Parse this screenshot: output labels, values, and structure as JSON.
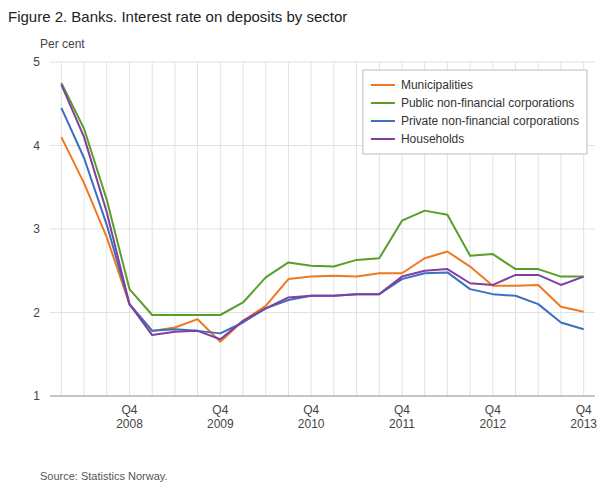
{
  "chart_data": {
    "type": "line",
    "title": "Figure 2. Banks. Interest rate on deposits by sector",
    "y_label": "Per cent",
    "annotations": [
      "Source: Statistics Norway."
    ],
    "categories": [
      null,
      null,
      null,
      "Q4\n2008",
      null,
      null,
      null,
      "Q4\n2009",
      null,
      null,
      null,
      "Q4\n2010",
      null,
      null,
      null,
      "Q4\n2011",
      null,
      null,
      null,
      "Q4\n2012",
      null,
      null,
      null,
      "Q4\n2013"
    ],
    "series": [
      {
        "name": "Municipalities",
        "color": "#f07820",
        "values": [
          4.1,
          3.55,
          2.9,
          2.1,
          1.78,
          1.82,
          1.92,
          1.65,
          1.9,
          2.08,
          2.4,
          2.43,
          2.44,
          2.43,
          2.47,
          2.47,
          2.65,
          2.73,
          2.55,
          2.32,
          2.32,
          2.33,
          2.07,
          2.01
        ]
      },
      {
        "name": "Public non-financial corporations",
        "color": "#5a9e28",
        "values": [
          4.75,
          4.2,
          3.35,
          2.28,
          1.97,
          1.97,
          1.97,
          1.97,
          2.12,
          2.42,
          2.6,
          2.56,
          2.55,
          2.63,
          2.65,
          3.1,
          3.22,
          3.17,
          2.68,
          2.7,
          2.52,
          2.52,
          2.43,
          2.43
        ]
      },
      {
        "name": "Private non-financial corporations",
        "color": "#3c6fbe",
        "values": [
          4.45,
          3.85,
          3.05,
          2.1,
          1.78,
          1.8,
          1.78,
          1.75,
          1.88,
          2.05,
          2.15,
          2.2,
          2.2,
          2.22,
          2.22,
          2.4,
          2.47,
          2.48,
          2.28,
          2.22,
          2.2,
          2.1,
          1.88,
          1.8
        ]
      },
      {
        "name": "Households",
        "color": "#8040a0",
        "values": [
          4.73,
          4.1,
          3.2,
          2.1,
          1.73,
          1.77,
          1.78,
          1.68,
          1.9,
          2.05,
          2.18,
          2.2,
          2.2,
          2.22,
          2.22,
          2.43,
          2.5,
          2.52,
          2.35,
          2.33,
          2.45,
          2.45,
          2.33,
          2.43
        ]
      }
    ],
    "ylim": [
      1,
      5
    ],
    "yticks": [
      1,
      2,
      3,
      4,
      5
    ],
    "grid": true,
    "legend": "upper right"
  }
}
